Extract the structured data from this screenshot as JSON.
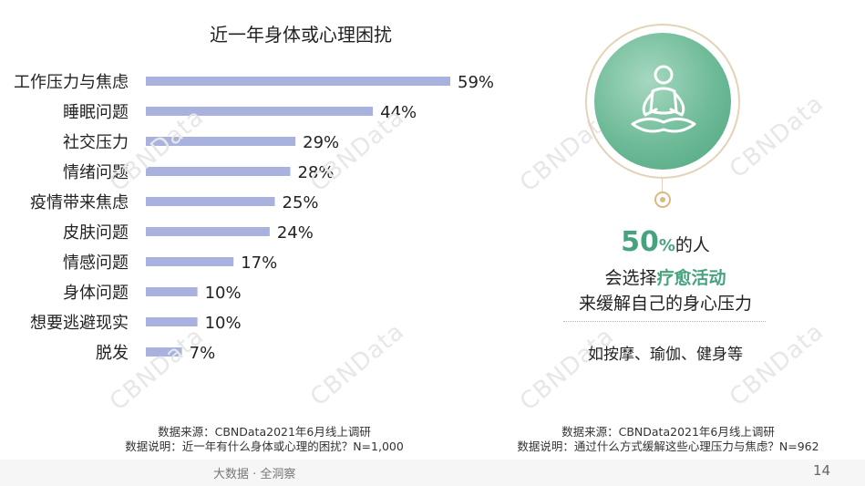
{
  "chart_data": {
    "type": "bar",
    "orientation": "horizontal",
    "title": "近一年身体或心理困扰",
    "categories": [
      "工作压力与焦虑",
      "睡眠问题",
      "社交压力",
      "情绪问题",
      "疫情带来焦虑",
      "皮肤问题",
      "情感问题",
      "身体问题",
      "想要逃避现实",
      "脱发"
    ],
    "values": [
      59,
      44,
      29,
      28,
      25,
      24,
      17,
      10,
      10,
      7
    ],
    "value_labels": [
      "59%",
      "44%",
      "29%",
      "28%",
      "25%",
      "24%",
      "17%",
      "10%",
      "10%",
      "7%"
    ],
    "xlim": [
      0,
      59
    ],
    "bar_color": "#a9b2df",
    "grid": false,
    "legend": "none"
  },
  "left_source": {
    "line1": "数据来源：CBNData2021年6月线上调研",
    "line2": "数据说明：近一年有什么身体或心理的困扰？N=1,000"
  },
  "right_source": {
    "line1": "数据来源：CBNData2021年6月线上调研",
    "line2": "数据说明：通过什么方式缓解这些心理压力与焦虑？N=962"
  },
  "callout": {
    "percent": "50",
    "percent_unit": "%",
    "line1_rest": "的人",
    "line2_prefix": "会选择",
    "line2_highlight": "疗愈活动",
    "line3": "来缓解自己的身心压力",
    "examples": "如按摩、瑜伽、健身等",
    "icon": "meditation-icon",
    "accent_color": "#47a37d"
  },
  "watermark": "CBNData",
  "footer": {
    "brand": "大数据 · 全洞察",
    "page_number": "14"
  }
}
